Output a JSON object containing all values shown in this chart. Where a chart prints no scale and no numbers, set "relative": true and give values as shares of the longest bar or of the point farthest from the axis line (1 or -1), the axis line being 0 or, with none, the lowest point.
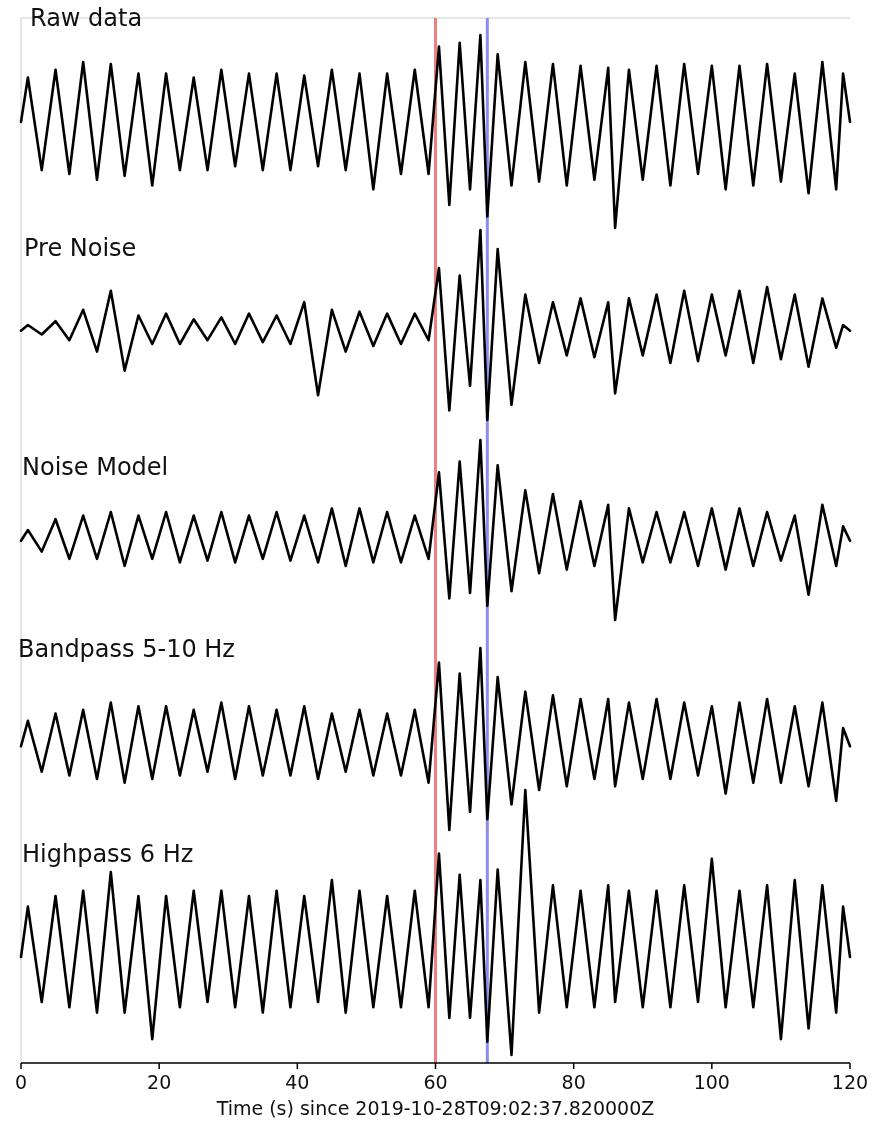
{
  "chart_data": [
    {
      "type": "line",
      "title": "Raw data",
      "relative": true,
      "xlim": [
        0,
        120
      ],
      "tick_labels": false,
      "ref_lines": [
        {
          "axis": "x",
          "value": 60,
          "color": "#f08080"
        },
        {
          "axis": "x",
          "value": 67.5,
          "color": "#8c8cf0"
        }
      ],
      "x": [
        0,
        1,
        3,
        5,
        7,
        9,
        11,
        13,
        15,
        17,
        19,
        21,
        23,
        25,
        27,
        29,
        31,
        33,
        35,
        37,
        39,
        41,
        43,
        45,
        47,
        49,
        51,
        53,
        55,
        57,
        59,
        60.5,
        62,
        63.5,
        65,
        66.5,
        67.5,
        69,
        71,
        73,
        75,
        77,
        79,
        81,
        83,
        85,
        86,
        88,
        90,
        92,
        94,
        96,
        98,
        100,
        102,
        104,
        106,
        108,
        110,
        112,
        114,
        116,
        118,
        119,
        120
      ],
      "series": [
        {
          "color": "#000000",
          "values": [
            0.55,
            0.78,
            0.3,
            0.82,
            0.28,
            0.86,
            0.25,
            0.85,
            0.27,
            0.8,
            0.22,
            0.8,
            0.3,
            0.78,
            0.3,
            0.82,
            0.32,
            0.8,
            0.3,
            0.8,
            0.3,
            0.79,
            0.32,
            0.82,
            0.3,
            0.8,
            0.2,
            0.8,
            0.28,
            0.82,
            0.28,
            0.94,
            0.12,
            0.96,
            0.2,
            1,
            0.06,
            0.9,
            0.22,
            0.86,
            0.24,
            0.85,
            0.22,
            0.84,
            0.25,
            0.83,
            0,
            0.82,
            0.25,
            0.84,
            0.22,
            0.85,
            0.28,
            0.84,
            0.2,
            0.84,
            0.22,
            0.85,
            0.24,
            0.8,
            0.18,
            0.86,
            0.2,
            0.8,
            0.55
          ]
        }
      ]
    },
    {
      "type": "line",
      "title": "Pre Noise",
      "relative": true,
      "xlim": [
        0,
        120
      ],
      "tick_labels": false,
      "ref_lines": [
        {
          "axis": "x",
          "value": 60,
          "color": "#f08080"
        },
        {
          "axis": "x",
          "value": 67.5,
          "color": "#8c8cf0"
        }
      ],
      "x": [
        0,
        1,
        3,
        5,
        7,
        9,
        11,
        13,
        15,
        17,
        19,
        21,
        23,
        25,
        27,
        29,
        31,
        33,
        35,
        37,
        39,
        41,
        43,
        45,
        47,
        49,
        51,
        53,
        55,
        57,
        59,
        60.5,
        62,
        63.5,
        65,
        66.5,
        67.5,
        69,
        71,
        73,
        75,
        77,
        79,
        81,
        83,
        85,
        86,
        88,
        90,
        92,
        94,
        96,
        98,
        100,
        102,
        104,
        106,
        108,
        110,
        112,
        114,
        116,
        118,
        119,
        120
      ],
      "series": [
        {
          "color": "#000000",
          "values": [
            0.47,
            0.5,
            0.45,
            0.52,
            0.42,
            0.58,
            0.36,
            0.68,
            0.26,
            0.55,
            0.4,
            0.56,
            0.4,
            0.53,
            0.42,
            0.54,
            0.4,
            0.56,
            0.41,
            0.55,
            0.4,
            0.62,
            0.13,
            0.58,
            0.36,
            0.57,
            0.39,
            0.56,
            0.4,
            0.56,
            0.42,
            0.8,
            0.05,
            0.76,
            0.18,
            1,
            0,
            0.9,
            0.08,
            0.66,
            0.3,
            0.62,
            0.34,
            0.64,
            0.33,
            0.62,
            0.14,
            0.64,
            0.34,
            0.66,
            0.3,
            0.68,
            0.31,
            0.66,
            0.34,
            0.68,
            0.3,
            0.7,
            0.32,
            0.66,
            0.28,
            0.64,
            0.38,
            0.5,
            0.47
          ]
        }
      ]
    },
    {
      "type": "line",
      "title": "Noise Model",
      "relative": true,
      "xlim": [
        0,
        120
      ],
      "tick_labels": false,
      "ref_lines": [
        {
          "axis": "x",
          "value": 60,
          "color": "#f08080"
        },
        {
          "axis": "x",
          "value": 67.5,
          "color": "#8c8cf0"
        }
      ],
      "x": [
        0,
        1,
        3,
        5,
        7,
        9,
        11,
        13,
        15,
        17,
        19,
        21,
        23,
        25,
        27,
        29,
        31,
        33,
        35,
        37,
        39,
        41,
        43,
        45,
        47,
        49,
        51,
        53,
        55,
        57,
        59,
        60.5,
        62,
        63.5,
        65,
        66.5,
        67.5,
        69,
        71,
        73,
        75,
        77,
        79,
        81,
        83,
        85,
        86,
        88,
        90,
        92,
        94,
        96,
        98,
        100,
        102,
        104,
        106,
        108,
        110,
        112,
        114,
        116,
        118,
        119,
        120
      ],
      "series": [
        {
          "color": "#000000",
          "values": [
            0.44,
            0.5,
            0.38,
            0.56,
            0.34,
            0.58,
            0.34,
            0.6,
            0.3,
            0.58,
            0.34,
            0.6,
            0.32,
            0.58,
            0.33,
            0.6,
            0.32,
            0.58,
            0.34,
            0.6,
            0.33,
            0.58,
            0.32,
            0.62,
            0.3,
            0.62,
            0.32,
            0.6,
            0.32,
            0.58,
            0.34,
            0.82,
            0.12,
            0.88,
            0.15,
            1,
            0.08,
            0.86,
            0.16,
            0.72,
            0.26,
            0.7,
            0.28,
            0.66,
            0.3,
            0.64,
            0,
            0.62,
            0.32,
            0.6,
            0.32,
            0.6,
            0.3,
            0.62,
            0.28,
            0.62,
            0.3,
            0.6,
            0.33,
            0.58,
            0.14,
            0.64,
            0.3,
            0.52,
            0.44
          ]
        }
      ]
    },
    {
      "type": "line",
      "title": "Bandpass 5-10 Hz",
      "relative": true,
      "xlim": [
        0,
        120
      ],
      "tick_labels": false,
      "ref_lines": [
        {
          "axis": "x",
          "value": 60,
          "color": "#f08080"
        },
        {
          "axis": "x",
          "value": 67.5,
          "color": "#8c8cf0"
        }
      ],
      "x": [
        0,
        1,
        3,
        5,
        7,
        9,
        11,
        13,
        15,
        17,
        19,
        21,
        23,
        25,
        27,
        29,
        31,
        33,
        35,
        37,
        39,
        41,
        43,
        45,
        47,
        49,
        51,
        53,
        55,
        57,
        59,
        60.5,
        62,
        63.5,
        65,
        66.5,
        67.5,
        69,
        71,
        73,
        75,
        77,
        79,
        81,
        83,
        85,
        86,
        88,
        90,
        92,
        94,
        96,
        98,
        100,
        102,
        104,
        106,
        108,
        110,
        112,
        114,
        116,
        118,
        119,
        120
      ],
      "series": [
        {
          "color": "#000000",
          "values": [
            0.46,
            0.6,
            0.32,
            0.64,
            0.3,
            0.66,
            0.28,
            0.7,
            0.26,
            0.68,
            0.28,
            0.68,
            0.3,
            0.66,
            0.32,
            0.7,
            0.28,
            0.68,
            0.3,
            0.66,
            0.3,
            0.68,
            0.28,
            0.64,
            0.32,
            0.66,
            0.3,
            0.64,
            0.3,
            0.66,
            0.26,
            0.92,
            0,
            0.86,
            0.1,
            1,
            0.06,
            0.84,
            0.14,
            0.76,
            0.22,
            0.74,
            0.24,
            0.72,
            0.28,
            0.72,
            0.24,
            0.7,
            0.28,
            0.72,
            0.28,
            0.7,
            0.3,
            0.68,
            0.2,
            0.7,
            0.26,
            0.72,
            0.26,
            0.68,
            0.24,
            0.7,
            0.16,
            0.56,
            0.46
          ]
        }
      ]
    },
    {
      "type": "line",
      "title": "Highpass 6 Hz",
      "xlabel": "Time (s) since 2019-10-28T09:02:37.820000Z",
      "relative": true,
      "xlim": [
        0,
        120
      ],
      "xticks": [
        0,
        20,
        40,
        60,
        80,
        100,
        120
      ],
      "tick_labels": "x",
      "ref_lines": [
        {
          "axis": "x",
          "value": 60,
          "color": "#f08080"
        },
        {
          "axis": "x",
          "value": 67.5,
          "color": "#8c8cf0"
        }
      ],
      "x": [
        0,
        1,
        3,
        5,
        7,
        9,
        11,
        13,
        15,
        17,
        19,
        21,
        23,
        25,
        27,
        29,
        31,
        33,
        35,
        37,
        39,
        41,
        43,
        45,
        47,
        49,
        51,
        53,
        55,
        57,
        59,
        60.5,
        62,
        63.5,
        65,
        66.5,
        67.5,
        69,
        71,
        73,
        75,
        77,
        79,
        81,
        83,
        85,
        86,
        88,
        90,
        92,
        94,
        96,
        98,
        100,
        102,
        104,
        106,
        108,
        110,
        112,
        114,
        116,
        118,
        119,
        120
      ],
      "series": [
        {
          "color": "#000000",
          "values": [
            0.37,
            0.56,
            0.2,
            0.6,
            0.18,
            0.62,
            0.16,
            0.69,
            0.16,
            0.6,
            0.06,
            0.6,
            0.18,
            0.62,
            0.2,
            0.62,
            0.18,
            0.6,
            0.16,
            0.62,
            0.18,
            0.6,
            0.2,
            0.66,
            0.16,
            0.62,
            0.18,
            0.6,
            0.18,
            0.62,
            0.18,
            0.76,
            0.14,
            0.68,
            0.14,
            0.66,
            0.05,
            0.7,
            0,
            1,
            0.16,
            0.64,
            0.18,
            0.62,
            0.18,
            0.64,
            0.2,
            0.62,
            0.18,
            0.62,
            0.18,
            0.64,
            0.2,
            0.74,
            0.18,
            0.62,
            0.18,
            0.64,
            0.06,
            0.66,
            0.1,
            0.64,
            0.16,
            0.56,
            0.37
          ]
        }
      ]
    }
  ]
}
